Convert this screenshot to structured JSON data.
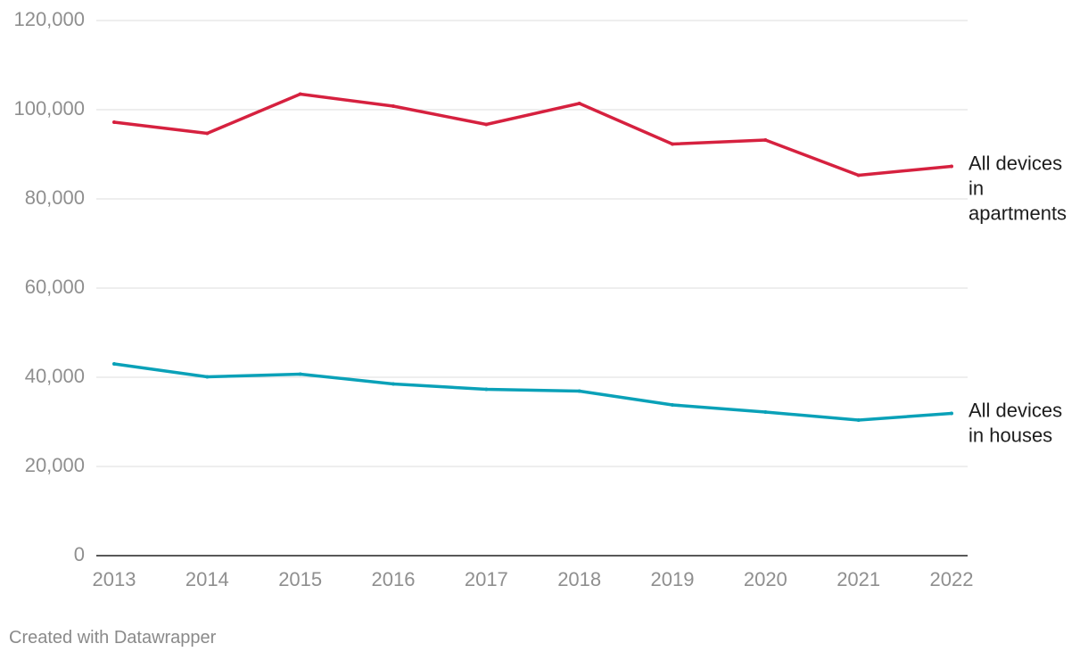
{
  "chart_data": {
    "type": "line",
    "x": [
      "2013",
      "2014",
      "2015",
      "2016",
      "2017",
      "2018",
      "2019",
      "2020",
      "2021",
      "2022"
    ],
    "series": [
      {
        "name": "All devices in apartments",
        "label_lines": [
          "All devices",
          "in",
          "apartments"
        ],
        "color": "#d6213f",
        "values": [
          97200,
          94700,
          103500,
          100800,
          96700,
          101400,
          92300,
          93200,
          85300,
          87300
        ]
      },
      {
        "name": "All devices in houses",
        "label_lines": [
          "All devices",
          "in houses"
        ],
        "color": "#0aa1b8",
        "values": [
          43000,
          40100,
          40700,
          38500,
          37300,
          36900,
          33800,
          32200,
          30400,
          31900
        ]
      }
    ],
    "ylim": [
      0,
      120000
    ],
    "y_ticks": [
      {
        "value": 0,
        "label": "0"
      },
      {
        "value": 20000,
        "label": "20,000"
      },
      {
        "value": 40000,
        "label": "40,000"
      },
      {
        "value": 60000,
        "label": "60,000"
      },
      {
        "value": 80000,
        "label": "80,000"
      },
      {
        "value": 100000,
        "label": "100,000"
      },
      {
        "value": 120000,
        "label": "120,000"
      }
    ],
    "grid": true,
    "legend": "inline-right",
    "title": "",
    "xlabel": "",
    "ylabel": ""
  },
  "credit": "Created with Datawrapper"
}
